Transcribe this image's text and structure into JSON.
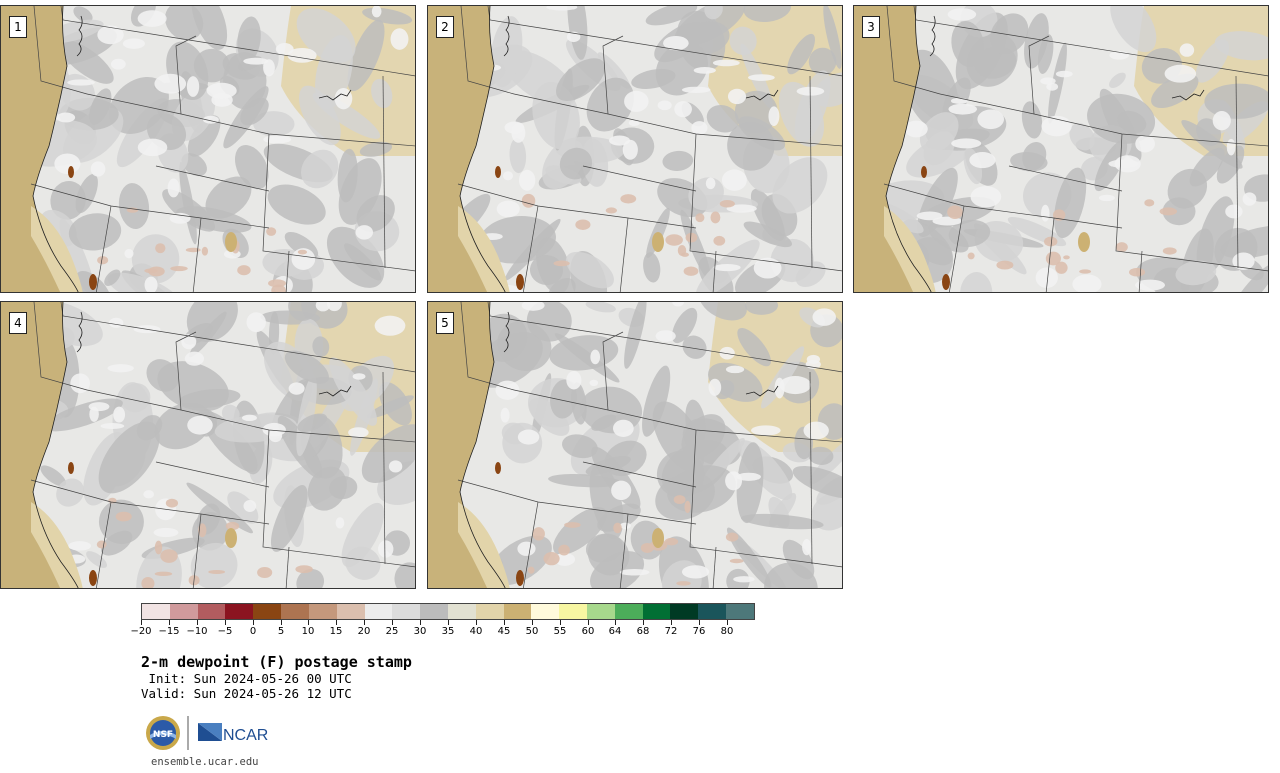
{
  "panels": [
    {
      "label": "1"
    },
    {
      "label": "2"
    },
    {
      "label": "3"
    },
    {
      "label": "4"
    },
    {
      "label": "5"
    }
  ],
  "colorbar": {
    "colors": [
      "#f1e3e3",
      "#d09a9c",
      "#b25c5f",
      "#8b1420",
      "#8a4513",
      "#ad7451",
      "#c4987c",
      "#dbbfae",
      "#ececec",
      "#dcdcdc",
      "#bcbcbc",
      "#e2e1d2",
      "#e2d4aa",
      "#ccb173",
      "#fffadc",
      "#f7f6a2",
      "#a7d88c",
      "#4cad5a",
      "#016f34",
      "#003a24",
      "#1a555b",
      "#4d787a"
    ],
    "tick_labels": [
      "−20",
      "−15",
      "−10",
      "−5",
      "0",
      "5",
      "10",
      "15",
      "20",
      "25",
      "30",
      "35",
      "40",
      "45",
      "50",
      "55",
      "60",
      "64",
      "68",
      "72",
      "76",
      "80"
    ]
  },
  "title": "2-m dewpoint (F) postage stamp",
  "init": " Init: Sun 2024-05-26 00 UTC",
  "valid": "Valid: Sun 2024-05-26 12 UTC",
  "logos": {
    "nsf": "NSF",
    "ncar": "NCAR"
  },
  "site": "ensemble.ucar.edu",
  "colors": {
    "ocean_tan": "#c8b27a",
    "land_light": "#e8e8e6",
    "gray_mid": "#bdbdbd",
    "beige": "#e2d4aa",
    "border": "#333333"
  }
}
